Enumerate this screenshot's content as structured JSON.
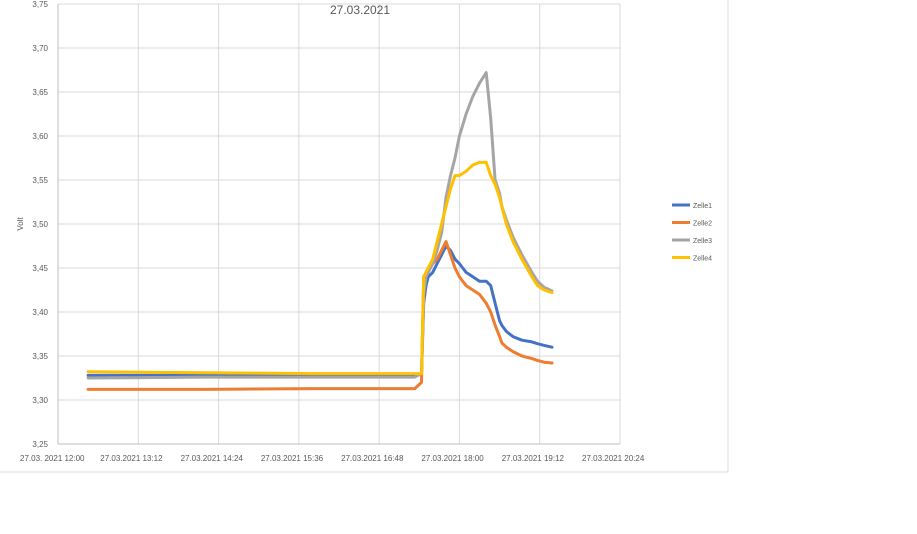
{
  "chart_data": {
    "type": "line",
    "title": "27.03.2021",
    "xlabel": "",
    "ylabel": "Volt",
    "x_ticks": [
      "27.03. 2021 12:00",
      "27.03.2021 13:12",
      "27.03.2021 14:24",
      "27.03.2021 15:36",
      "27.03.2021 16:48",
      "27.03.2021 18:00",
      "27.03.2021 19:12",
      "27.03.2021 20:24"
    ],
    "x_tick_minutes": [
      720,
      792,
      864,
      936,
      1008,
      1080,
      1152,
      1224
    ],
    "xlim_minutes": [
      720,
      1224
    ],
    "ylim": [
      3.25,
      3.75
    ],
    "y_ticks": [
      3.25,
      3.3,
      3.35,
      3.4,
      3.45,
      3.5,
      3.55,
      3.6,
      3.65,
      3.7,
      3.75
    ],
    "y_tick_labels": [
      "3,25",
      "3,30",
      "3,35",
      "3,40",
      "3,45",
      "3,50",
      "3,55",
      "3,60",
      "3,65",
      "3,70",
      "3,75"
    ],
    "grid": true,
    "legend": "right",
    "series": [
      {
        "name": "Zelle1",
        "color": "#4472C4",
        "x": [
          747,
          850,
          950,
          1040,
          1046,
          1048,
          1050,
          1052,
          1056,
          1060,
          1064,
          1068,
          1072,
          1076,
          1080,
          1086,
          1092,
          1098,
          1104,
          1108,
          1112,
          1116,
          1118,
          1122,
          1128,
          1136,
          1145,
          1150,
          1156,
          1163
        ],
        "values": [
          3.328,
          3.328,
          3.327,
          3.327,
          3.33,
          3.41,
          3.43,
          3.44,
          3.445,
          3.455,
          3.465,
          3.475,
          3.47,
          3.46,
          3.455,
          3.445,
          3.44,
          3.435,
          3.435,
          3.43,
          3.41,
          3.39,
          3.385,
          3.378,
          3.372,
          3.368,
          3.366,
          3.364,
          3.362,
          3.36
        ]
      },
      {
        "name": "Zelle2",
        "color": "#ED7D31",
        "x": [
          747,
          850,
          950,
          1040,
          1046,
          1048,
          1050,
          1052,
          1056,
          1060,
          1064,
          1068,
          1072,
          1076,
          1080,
          1086,
          1092,
          1098,
          1104,
          1108,
          1112,
          1116,
          1118,
          1122,
          1128,
          1136,
          1145,
          1150,
          1156,
          1163
        ],
        "values": [
          3.312,
          3.312,
          3.313,
          3.313,
          3.32,
          3.44,
          3.445,
          3.45,
          3.455,
          3.46,
          3.47,
          3.48,
          3.465,
          3.45,
          3.44,
          3.43,
          3.425,
          3.42,
          3.41,
          3.4,
          3.385,
          3.372,
          3.365,
          3.36,
          3.355,
          3.35,
          3.347,
          3.345,
          3.343,
          3.342
        ]
      },
      {
        "name": "Zelle3",
        "color": "#A5A5A5",
        "x": [
          747,
          850,
          950,
          1040,
          1046,
          1048,
          1050,
          1052,
          1056,
          1060,
          1064,
          1068,
          1072,
          1076,
          1080,
          1086,
          1092,
          1098,
          1104,
          1108,
          1112,
          1116,
          1118,
          1122,
          1128,
          1136,
          1145,
          1150,
          1156,
          1163
        ],
        "values": [
          3.325,
          3.326,
          3.326,
          3.326,
          3.33,
          3.42,
          3.44,
          3.445,
          3.455,
          3.47,
          3.49,
          3.53,
          3.555,
          3.575,
          3.6,
          3.625,
          3.645,
          3.66,
          3.672,
          3.62,
          3.55,
          3.535,
          3.52,
          3.505,
          3.485,
          3.465,
          3.445,
          3.435,
          3.428,
          3.424
        ]
      },
      {
        "name": "Zelle4",
        "color": "#FFC000",
        "x": [
          747,
          850,
          950,
          1040,
          1046,
          1048,
          1050,
          1052,
          1056,
          1060,
          1064,
          1068,
          1072,
          1076,
          1080,
          1086,
          1092,
          1098,
          1104,
          1108,
          1112,
          1116,
          1118,
          1122,
          1128,
          1136,
          1145,
          1150,
          1156,
          1163
        ],
        "values": [
          3.332,
          3.331,
          3.33,
          3.33,
          3.33,
          3.44,
          3.445,
          3.45,
          3.46,
          3.48,
          3.5,
          3.52,
          3.54,
          3.555,
          3.555,
          3.56,
          3.567,
          3.57,
          3.57,
          3.555,
          3.545,
          3.53,
          3.52,
          3.5,
          3.48,
          3.46,
          3.44,
          3.43,
          3.425,
          3.422
        ]
      }
    ]
  }
}
